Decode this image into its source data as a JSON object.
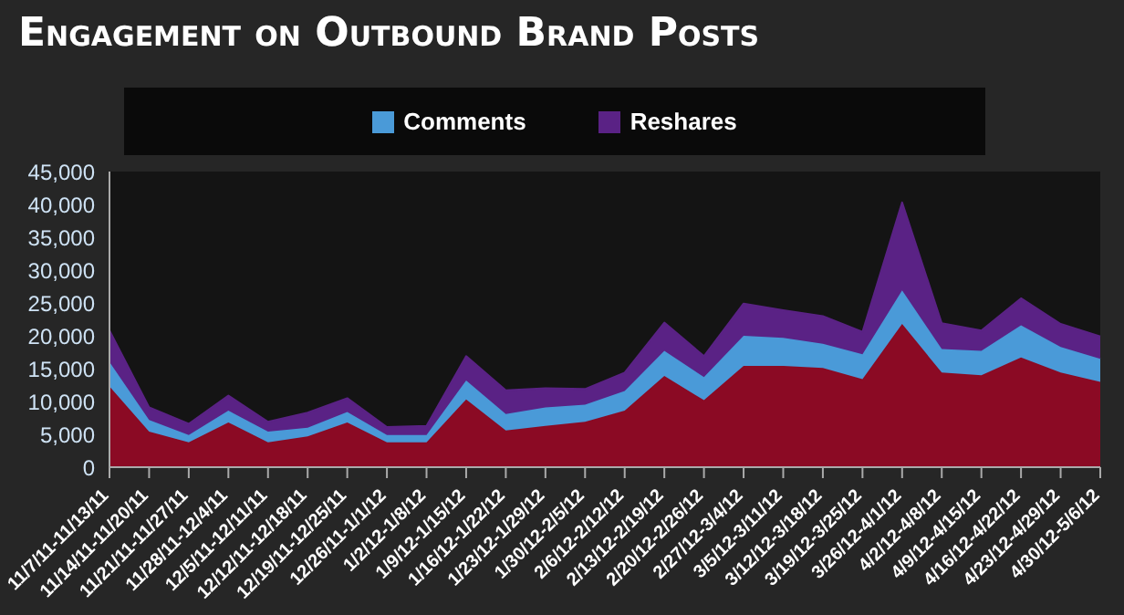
{
  "chart_data": {
    "type": "area",
    "title": "Engagement on Outbound Brand Posts",
    "stacked": true,
    "legend": "top",
    "categories": [
      "11/7/11-11/13/11",
      "11/14/11-11/20/11",
      "11/21/11-11/27/11",
      "11/28/11-12/4/11",
      "12/5/11-12/11/11",
      "12/12/11-12/18/11",
      "12/19/11-12/25/11",
      "12/26/11-1/1/12",
      "1/2/12-1/8/12",
      "1/9/12-1/15/12",
      "1/16/12-1/22/12",
      "1/23/12-1/29/12",
      "1/30/12-2/5/12",
      "2/6/12-2/12/12",
      "2/13/12-2/19/12",
      "2/20/12-2/26/12",
      "2/27/12-3/4/12",
      "3/5/12-3/11/12",
      "3/12/12-3/18/12",
      "3/19/12-3/25/12",
      "3/26/12-4/1/12",
      "4/2/12-4/8/12",
      "4/9/12-4/15/12",
      "4/16/12-4/22/12",
      "4/23/12-4/29/12",
      "4/30/12-5/6/12"
    ],
    "series": [
      {
        "color": "#8b0a24",
        "values": [
          12300,
          5400,
          3800,
          6800,
          3800,
          4700,
          6800,
          3800,
          3800,
          10300,
          5600,
          6300,
          6900,
          8600,
          13900,
          10200,
          15400,
          15400,
          15100,
          13400,
          21800,
          14400,
          14000,
          16700,
          14400,
          13000
        ]
      },
      {
        "name": "Comments",
        "color": "#4a9ad8",
        "values": [
          3700,
          1800,
          1100,
          1800,
          1600,
          1300,
          1600,
          1100,
          1100,
          2900,
          2500,
          2800,
          2600,
          3000,
          3800,
          3500,
          4600,
          4300,
          3700,
          3800,
          5100,
          3600,
          3700,
          4900,
          3900,
          3500
        ]
      },
      {
        "name": "Reshares",
        "color": "#5a2285",
        "values": [
          4800,
          1900,
          1700,
          2300,
          1500,
          2300,
          2100,
          1200,
          1400,
          3700,
          3600,
          2900,
          2400,
          2800,
          4300,
          3200,
          4900,
          4200,
          4200,
          3400,
          13400,
          3900,
          3100,
          4100,
          3500,
          3400
        ]
      }
    ],
    "ylim": [
      0,
      45000
    ],
    "yticks": [
      0,
      {
        "value": 5000,
        "label": "5,000"
      },
      {
        "value": 10000,
        "label": "10,000"
      },
      {
        "value": 15000,
        "label": "15,000"
      },
      {
        "value": 20000,
        "label": "20,000"
      },
      {
        "value": 25000,
        "label": "25,000"
      },
      {
        "value": 30000,
        "label": "30,000"
      },
      {
        "value": 35000,
        "label": "35,000"
      },
      {
        "value": 40000,
        "label": "40,000"
      },
      {
        "value": 45000,
        "label": "45,000"
      }
    ],
    "grid": false
  }
}
